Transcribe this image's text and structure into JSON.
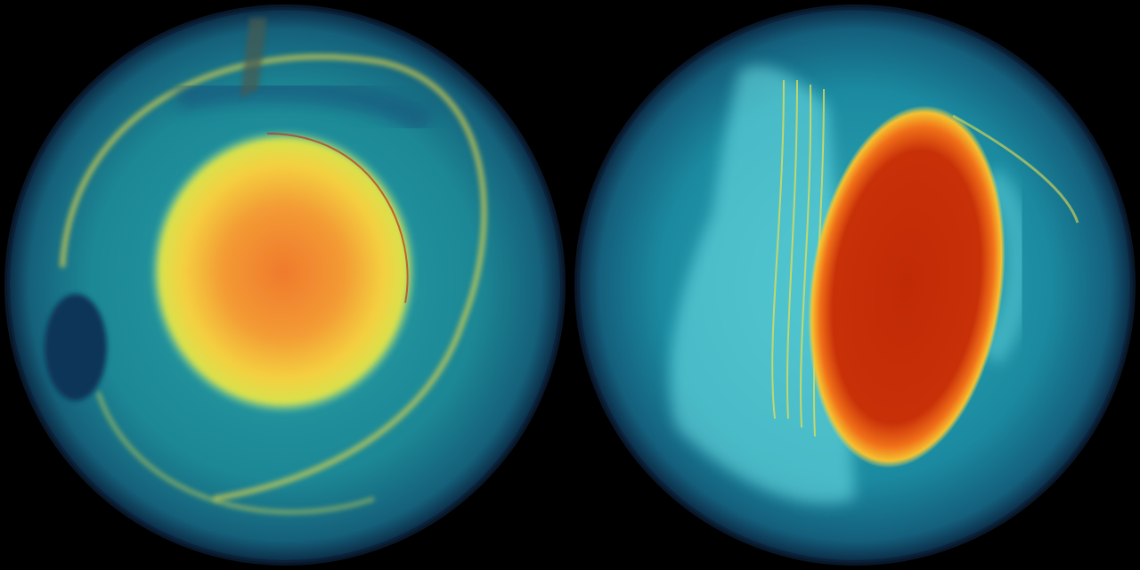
{
  "scene": {
    "background": "#000000",
    "globes": [
      {
        "name": "left-globe",
        "ocean": "#1f8a9a",
        "rim": "#0b2a45",
        "vortex_core": "#f08a30",
        "vortex_ring": "#f2e24a",
        "dark_eddy": "#0c3458"
      },
      {
        "name": "right-globe",
        "ocean": "#1b93a8",
        "rim": "#0b2a45",
        "land_overlay": "#6fe3e8",
        "hot_core": "#c02a05",
        "hot_edge": "#f6a020",
        "streaks": "#e8e050"
      }
    ]
  }
}
